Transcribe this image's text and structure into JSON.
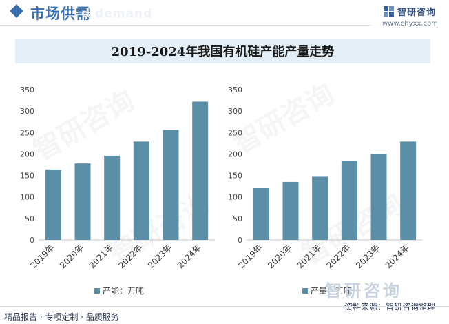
{
  "header": {
    "section_title": "市场供需",
    "section_title_en": "d demand",
    "brand_name": "智研咨询",
    "brand_url": "www.chyxx.com",
    "accent_color": "#3a6fb0"
  },
  "chart_data": [
    {
      "type": "bar",
      "title": "2019-2024年我国有机硅产能产量走势",
      "categories": [
        "2019年",
        "2020年",
        "2021年",
        "2022年",
        "2023年",
        "2024年"
      ],
      "series": [
        {
          "name": "产能：万吨",
          "values": [
            164,
            178,
            196,
            229,
            256,
            322
          ],
          "color": "#5b8fa8"
        }
      ],
      "ylim": [
        0,
        350
      ],
      "yticks": [
        0,
        50,
        100,
        150,
        200,
        250,
        300,
        350
      ],
      "grid": false,
      "legend": "bottom"
    },
    {
      "type": "bar",
      "categories": [
        "2019年",
        "2020年",
        "2021年",
        "2022年",
        "2023年",
        "2024年"
      ],
      "series": [
        {
          "name": "产量：万吨",
          "values": [
            122,
            135,
            147,
            184,
            200,
            229
          ],
          "color": "#5b8fa8"
        }
      ],
      "ylim": [
        0,
        350
      ],
      "yticks": [
        0,
        50,
        100,
        150,
        200,
        250,
        300,
        350
      ],
      "grid": false,
      "legend": "bottom"
    }
  ],
  "footer": {
    "tags": "精品报告 · 专项定制 · 品质服务",
    "source": "资料来源：智研咨询整理",
    "watermark_brand": "智研咨询"
  }
}
